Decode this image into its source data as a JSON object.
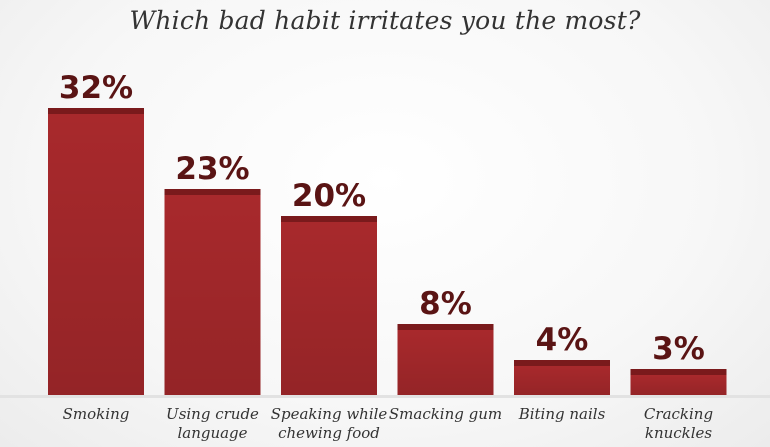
{
  "chart_data": {
    "type": "bar",
    "title": "Which bad habit irritates you the most?",
    "categories": [
      [
        "Smoking"
      ],
      [
        "Using crude",
        "language"
      ],
      [
        "Speaking while",
        "chewing food"
      ],
      [
        "Smacking gum"
      ],
      [
        "Biting nails"
      ],
      [
        "Cracking",
        "knuckles"
      ]
    ],
    "values": [
      32,
      23,
      20,
      8,
      4,
      3
    ],
    "data_labels": [
      "32%",
      "23%",
      "20%",
      "8%",
      "4%",
      "3%"
    ],
    "unit": "%",
    "ylim": [
      0,
      32
    ],
    "grid": false,
    "legend": "none",
    "colors": {
      "bar": "#a8292c",
      "bar_top": "#7a1a1c",
      "label": "#5a1414"
    }
  }
}
